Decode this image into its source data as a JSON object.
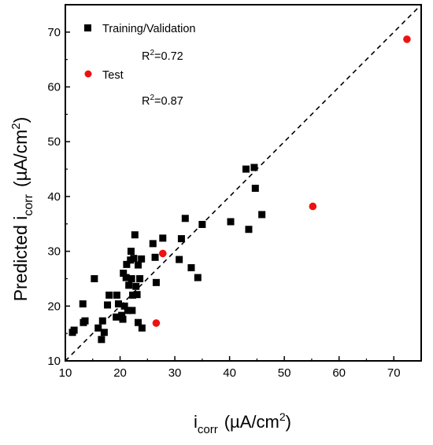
{
  "chart_data": {
    "type": "scatter",
    "xlabel": {
      "main": "i",
      "sub": "corr",
      "unit_prefix": "(µA/cm",
      "unit_sup": "2",
      "unit_suffix": ")"
    },
    "ylabel": {
      "main": "Predicted i",
      "sub": "corr",
      "unit_prefix": "(µA/cm",
      "unit_sup": "2",
      "unit_suffix": ")"
    },
    "xlim": [
      10,
      75
    ],
    "ylim": [
      10,
      75
    ],
    "xticks": [
      10,
      20,
      30,
      40,
      50,
      60,
      70
    ],
    "yticks": [
      10,
      20,
      30,
      40,
      50,
      60,
      70
    ],
    "grid": false,
    "legend_position": "top-left",
    "reference_line": {
      "style": "dashed",
      "color": "#000000",
      "from": [
        10,
        10
      ],
      "to": [
        75,
        75
      ]
    },
    "series": [
      {
        "name": "Training/Validation",
        "marker": "square",
        "color": "#000000",
        "r2_prefix": "R",
        "r2_sup": "2",
        "r2_value": "=0.72",
        "points": [
          [
            11.3,
            15.2
          ],
          [
            11.6,
            15.6
          ],
          [
            13.2,
            20.4
          ],
          [
            13.3,
            17.0
          ],
          [
            13.6,
            17.3
          ],
          [
            15.3,
            25.0
          ],
          [
            16.0,
            16.0
          ],
          [
            16.6,
            13.9
          ],
          [
            16.8,
            17.3
          ],
          [
            17.1,
            15.2
          ],
          [
            17.7,
            20.2
          ],
          [
            18.0,
            22.0
          ],
          [
            19.3,
            18.0
          ],
          [
            19.4,
            22.0
          ],
          [
            19.7,
            20.4
          ],
          [
            20.3,
            18.3
          ],
          [
            20.5,
            17.6
          ],
          [
            20.6,
            26.0
          ],
          [
            20.8,
            20.0
          ],
          [
            21.1,
            25.2
          ],
          [
            21.2,
            27.6
          ],
          [
            21.4,
            19.2
          ],
          [
            21.6,
            23.8
          ],
          [
            21.9,
            28.4
          ],
          [
            22.0,
            30.0
          ],
          [
            22.1,
            25.0
          ],
          [
            22.2,
            19.2
          ],
          [
            22.3,
            22.0
          ],
          [
            22.5,
            28.7
          ],
          [
            22.7,
            33.0
          ],
          [
            22.9,
            23.6
          ],
          [
            23.1,
            22.1
          ],
          [
            23.3,
            27.5
          ],
          [
            23.3,
            17.0
          ],
          [
            23.6,
            25.0
          ],
          [
            23.9,
            28.6
          ],
          [
            24.0,
            16.0
          ],
          [
            26.0,
            31.4
          ],
          [
            26.4,
            28.9
          ],
          [
            26.6,
            24.3
          ],
          [
            27.8,
            32.4
          ],
          [
            30.8,
            28.5
          ],
          [
            31.2,
            32.3
          ],
          [
            31.9,
            36.0
          ],
          [
            33.0,
            27.0
          ],
          [
            34.2,
            25.2
          ],
          [
            35.0,
            34.9
          ],
          [
            40.2,
            35.4
          ],
          [
            43.0,
            45.0
          ],
          [
            43.5,
            34.0
          ],
          [
            44.5,
            45.3
          ],
          [
            44.7,
            41.5
          ],
          [
            45.9,
            36.7
          ]
        ]
      },
      {
        "name": "Test",
        "marker": "circle",
        "color": "#ee1111",
        "r2_prefix": "R",
        "r2_sup": "2",
        "r2_value": "=0.87",
        "points": [
          [
            26.6,
            16.9
          ],
          [
            27.8,
            29.6
          ],
          [
            55.2,
            38.2
          ],
          [
            72.4,
            68.7
          ]
        ]
      }
    ]
  }
}
